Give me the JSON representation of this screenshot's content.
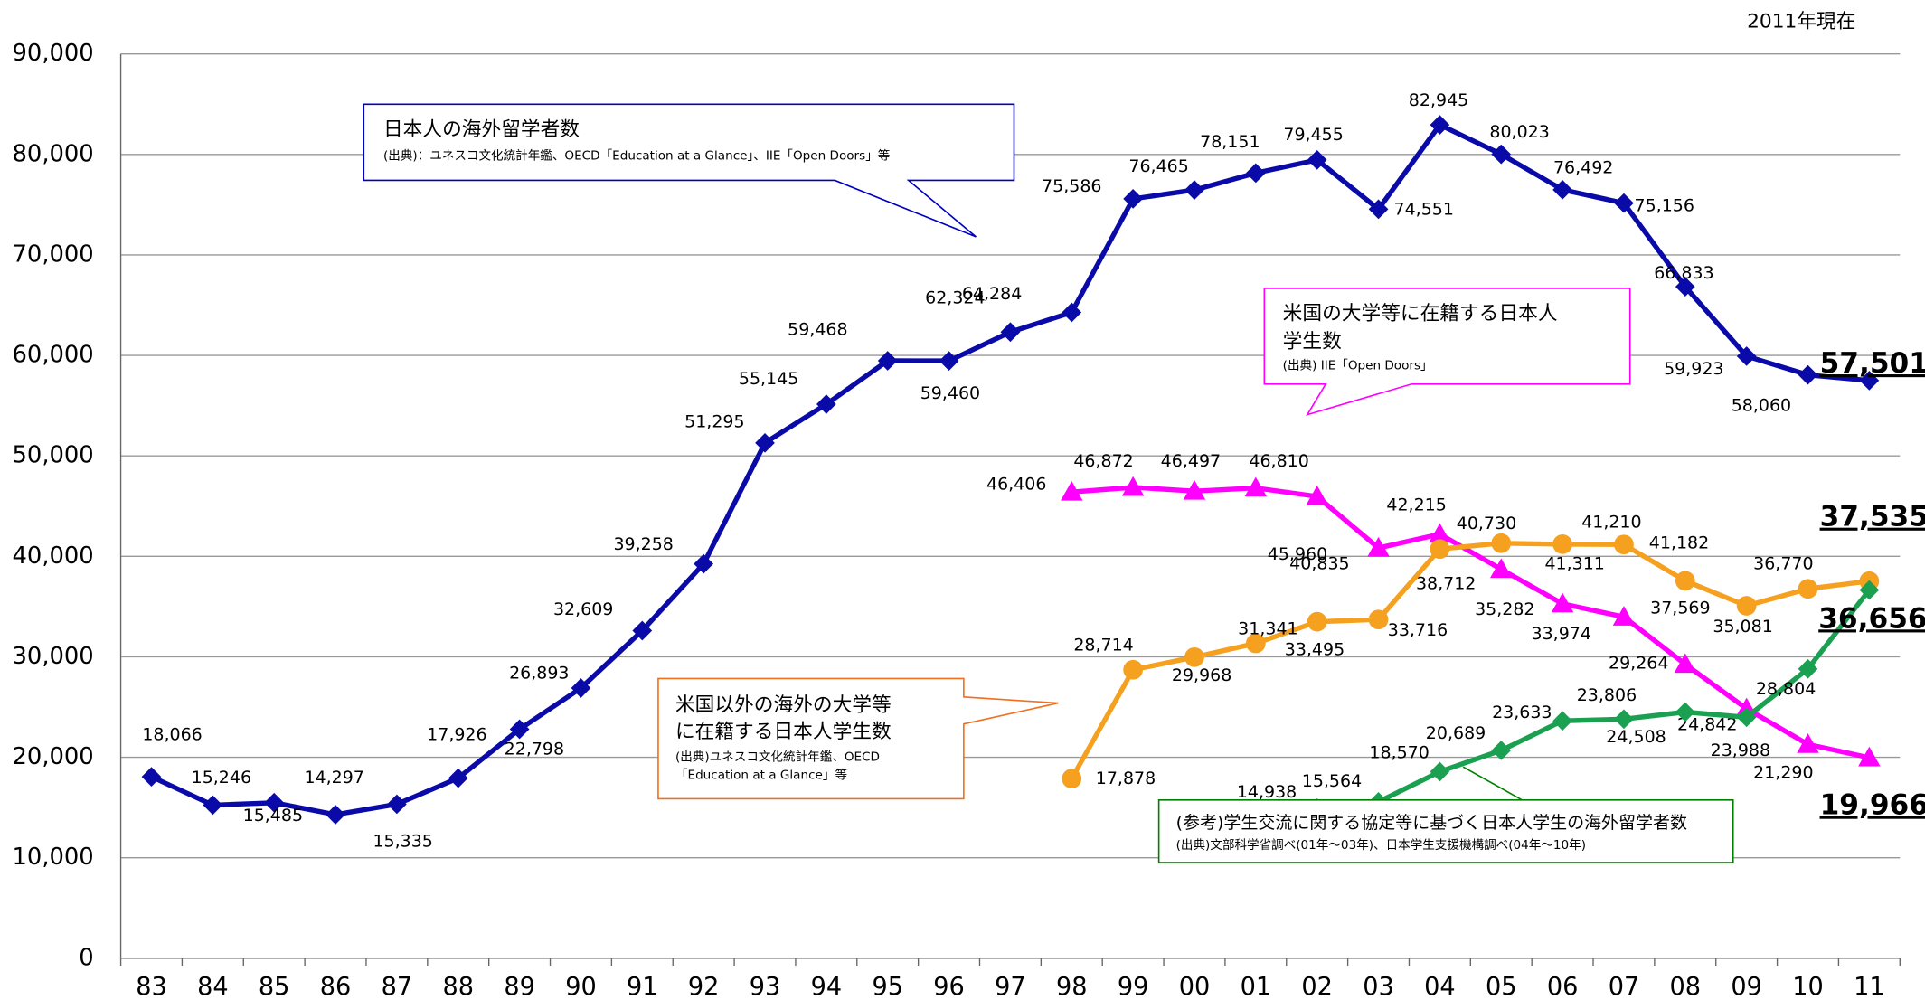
{
  "chart_data": {
    "type": "line",
    "note": "2011年現在",
    "categories": [
      "83",
      "84",
      "85",
      "86",
      "87",
      "88",
      "89",
      "90",
      "91",
      "92",
      "93",
      "94",
      "95",
      "96",
      "97",
      "98",
      "99",
      "00",
      "01",
      "02",
      "03",
      "04",
      "05",
      "06",
      "07",
      "08",
      "09",
      "10",
      "11"
    ],
    "ylim": [
      0,
      90000
    ],
    "yticks": [
      0,
      {
        "value": 10000,
        "label": "10,000"
      },
      {
        "value": 20000,
        "label": "20,000"
      },
      {
        "value": 30000,
        "label": "30,000"
      },
      {
        "value": 40000,
        "label": "40,000"
      },
      {
        "value": 50000,
        "label": "50,000"
      },
      {
        "value": 60000,
        "label": "60,000"
      },
      {
        "value": 70000,
        "label": "70,000"
      },
      {
        "value": 80000,
        "label": "80,000"
      },
      {
        "value": 90000,
        "label": "90,000"
      }
    ],
    "grid": true,
    "series": [
      {
        "color": "#0a0aa8",
        "marker": "diamond",
        "values": [
          18066,
          15246,
          15485,
          14297,
          15335,
          17926,
          22798,
          26893,
          32609,
          39258,
          51295,
          55145,
          59468,
          59460,
          62324,
          64284,
          75586,
          76465,
          78151,
          79455,
          74551,
          82945,
          80023,
          76492,
          75156,
          66833,
          59923,
          58060,
          57501
        ],
        "value_labels": [
          "18,066",
          "15,246",
          "15,485",
          "14,297",
          "15,335",
          "17,926",
          "22,798",
          "26,893",
          "32,609",
          "39,258",
          "51,295",
          "55,145",
          "59,468",
          "59,460",
          "62,324",
          "64,284",
          "75,586",
          "76,465",
          "78,151",
          "79,455",
          "74,551",
          "82,945",
          "80,023",
          "76,492",
          "75,156",
          "66,833",
          "59,923",
          "58,060",
          "57,501"
        ]
      },
      {
        "color": "#ff00ff",
        "marker": "triangle",
        "values": [
          null,
          null,
          null,
          null,
          null,
          null,
          null,
          null,
          null,
          null,
          null,
          null,
          null,
          null,
          null,
          46406,
          46872,
          46497,
          46810,
          45960,
          40835,
          42215,
          38712,
          35282,
          33974,
          29264,
          24842,
          21290,
          19966
        ],
        "value_labels": [
          null,
          null,
          null,
          null,
          null,
          null,
          null,
          null,
          null,
          null,
          null,
          null,
          null,
          null,
          null,
          "46,406",
          "46,872",
          "46,497",
          "46,810",
          "45,960",
          "40,835",
          "42,215",
          "38,712",
          "35,282",
          "33,974",
          "29,264",
          "24,842",
          "21,290",
          "19,966"
        ]
      },
      {
        "color": "#f5a01e",
        "marker": "circle",
        "values": [
          null,
          null,
          null,
          null,
          null,
          null,
          null,
          null,
          null,
          null,
          null,
          null,
          null,
          null,
          null,
          17878,
          28714,
          29968,
          31341,
          33495,
          33716,
          40730,
          41311,
          41210,
          41182,
          37569,
          35081,
          36770,
          37535
        ],
        "value_labels": [
          null,
          null,
          null,
          null,
          null,
          null,
          null,
          null,
          null,
          null,
          null,
          null,
          null,
          null,
          null,
          "17,878",
          "28,714",
          "29,968",
          "31,341",
          "33,495",
          "33,716",
          "40,730",
          "41,311",
          "41,210",
          "41,182",
          "37,569",
          "35,081",
          "36,770",
          "37,535"
        ]
      },
      {
        "color": "#1aa050",
        "marker": "diamond",
        "values": [
          null,
          null,
          null,
          null,
          null,
          null,
          null,
          null,
          null,
          null,
          null,
          null,
          null,
          null,
          null,
          null,
          null,
          null,
          null,
          14938,
          15564,
          18570,
          20689,
          23633,
          23806,
          24508,
          23988,
          28804,
          36656
        ],
        "value_labels": [
          null,
          null,
          null,
          null,
          null,
          null,
          null,
          null,
          null,
          null,
          null,
          null,
          null,
          null,
          null,
          null,
          null,
          null,
          null,
          "14,938",
          "15,564",
          "18,570",
          "20,689",
          "23,633",
          "23,806",
          "24,508",
          "23,988",
          "28,804",
          "36,656"
        ]
      }
    ],
    "annotations": [
      {
        "title": [
          "日本人の海外留学者数"
        ],
        "source": [
          "(出典)：ユネスコ文化統計年鑑、OECD「Education at a Glance」、IIE「Open Doors」等"
        ]
      },
      {
        "title": [
          "米国の大学等に在籍する日本人",
          "学生数"
        ],
        "source": [
          "(出典) IIE「Open Doors」"
        ]
      },
      {
        "title": [
          "米国以外の海外の大学等",
          "に在籍する日本人学生数"
        ],
        "source": [
          "(出典)ユネスコ文化統計年鑑、OECD",
          "「Education at a Glance」等"
        ]
      },
      {
        "title": [
          "(参考)学生交流に関する協定等に基づく日本人学生の海外留学者数"
        ],
        "source": [
          "(出典)文部科学省調べ(01年～03年)、日本学生支援機構調べ(04年～10年)"
        ]
      }
    ]
  }
}
